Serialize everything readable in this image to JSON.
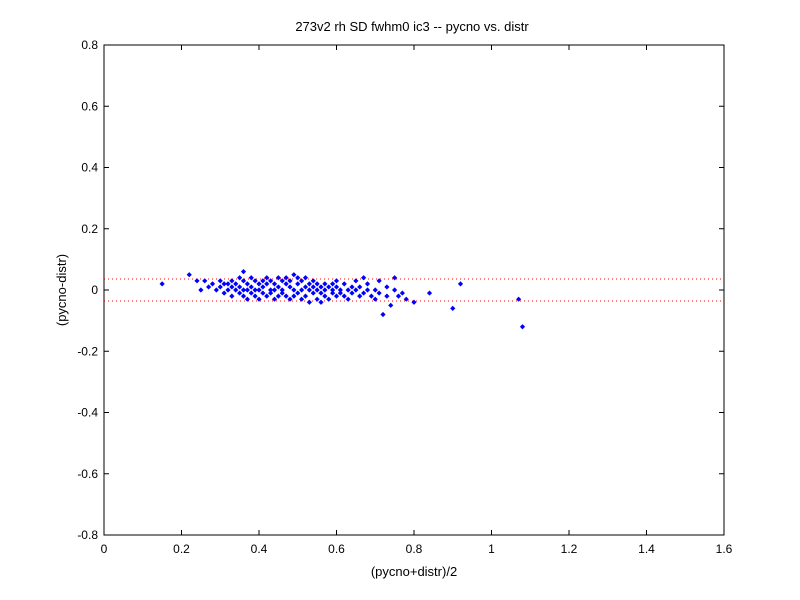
{
  "chart_data": {
    "type": "scatter",
    "title": "273v2 rh SD fwhm0 ic3 -- pycno vs. distr",
    "xlabel": "(pycno+distr)/2",
    "ylabel": "(pycno-distr)",
    "xlim": [
      0,
      1.6
    ],
    "ylim": [
      -0.8,
      0.8
    ],
    "xticks": [
      0,
      0.2,
      0.4,
      0.6,
      0.8,
      1,
      1.2,
      1.4,
      1.6
    ],
    "yticks": [
      -0.8,
      -0.6,
      -0.4,
      -0.2,
      0,
      0.2,
      0.4,
      0.6,
      0.8
    ],
    "xtick_labels": [
      "0",
      "0.2",
      "0.4",
      "0.6",
      "0.8",
      "1",
      "1.2",
      "1.4",
      "1.6"
    ],
    "ytick_labels": [
      "-0.8",
      "-0.6",
      "-0.4",
      "-0.2",
      "0",
      "0.2",
      "0.4",
      "0.6",
      "0.8"
    ],
    "grid": false,
    "legend": "none",
    "colors": {
      "points": "#0000ff",
      "reference_lines": "#ff0000",
      "axes": "#000000"
    },
    "reference_lines": [
      {
        "y": 0.036,
        "style": "dotted"
      },
      {
        "y": -0.036,
        "style": "dotted"
      }
    ],
    "series": [
      {
        "marker": "diamond",
        "points": [
          [
            0.15,
            0.02
          ],
          [
            0.22,
            0.05
          ],
          [
            0.24,
            0.03
          ],
          [
            0.25,
            0.0
          ],
          [
            0.26,
            0.03
          ],
          [
            0.27,
            0.01
          ],
          [
            0.28,
            0.02
          ],
          [
            0.29,
            0.0
          ],
          [
            0.3,
            0.01
          ],
          [
            0.3,
            0.03
          ],
          [
            0.31,
            0.02
          ],
          [
            0.31,
            -0.01
          ],
          [
            0.32,
            0.02
          ],
          [
            0.32,
            0.0
          ],
          [
            0.33,
            0.03
          ],
          [
            0.33,
            0.01
          ],
          [
            0.33,
            -0.02
          ],
          [
            0.34,
            0.02
          ],
          [
            0.34,
            0.0
          ],
          [
            0.35,
            0.04
          ],
          [
            0.35,
            0.01
          ],
          [
            0.35,
            -0.01
          ],
          [
            0.36,
            0.06
          ],
          [
            0.36,
            0.03
          ],
          [
            0.36,
            0.0
          ],
          [
            0.36,
            -0.02
          ],
          [
            0.37,
            0.02
          ],
          [
            0.37,
            0.0
          ],
          [
            0.37,
            -0.03
          ],
          [
            0.38,
            0.04
          ],
          [
            0.38,
            0.01
          ],
          [
            0.38,
            -0.01
          ],
          [
            0.39,
            0.03
          ],
          [
            0.39,
            0.0
          ],
          [
            0.39,
            -0.02
          ],
          [
            0.4,
            0.02
          ],
          [
            0.4,
            0.0
          ],
          [
            0.4,
            -0.03
          ],
          [
            0.41,
            0.03
          ],
          [
            0.41,
            0.01
          ],
          [
            0.41,
            -0.01
          ],
          [
            0.42,
            0.04
          ],
          [
            0.42,
            0.02
          ],
          [
            0.42,
            -0.02
          ],
          [
            0.43,
            0.03
          ],
          [
            0.43,
            0.0
          ],
          [
            0.43,
            -0.01
          ],
          [
            0.44,
            0.02
          ],
          [
            0.44,
            0.0
          ],
          [
            0.44,
            -0.03
          ],
          [
            0.45,
            0.04
          ],
          [
            0.45,
            0.01
          ],
          [
            0.45,
            -0.02
          ],
          [
            0.46,
            0.03
          ],
          [
            0.46,
            0.0
          ],
          [
            0.46,
            -0.01
          ],
          [
            0.47,
            0.02
          ],
          [
            0.47,
            -0.02
          ],
          [
            0.47,
            0.04
          ],
          [
            0.48,
            0.01
          ],
          [
            0.48,
            -0.03
          ],
          [
            0.48,
            0.03
          ],
          [
            0.49,
            0.0
          ],
          [
            0.49,
            0.05
          ],
          [
            0.49,
            -0.02
          ],
          [
            0.5,
            0.02
          ],
          [
            0.5,
            -0.01
          ],
          [
            0.5,
            0.04
          ],
          [
            0.51,
            0.0
          ],
          [
            0.51,
            0.03
          ],
          [
            0.51,
            -0.03
          ],
          [
            0.52,
            0.01
          ],
          [
            0.52,
            -0.02
          ],
          [
            0.52,
            0.04
          ],
          [
            0.53,
            0.0
          ],
          [
            0.53,
            0.02
          ],
          [
            0.53,
            -0.04
          ],
          [
            0.54,
            0.01
          ],
          [
            0.54,
            -0.01
          ],
          [
            0.54,
            0.03
          ],
          [
            0.55,
            0.0
          ],
          [
            0.55,
            -0.03
          ],
          [
            0.55,
            0.02
          ],
          [
            0.56,
            -0.01
          ],
          [
            0.56,
            0.01
          ],
          [
            0.56,
            -0.04
          ],
          [
            0.57,
            0.0
          ],
          [
            0.57,
            0.02
          ],
          [
            0.57,
            -0.02
          ],
          [
            0.58,
            0.01
          ],
          [
            0.58,
            -0.03
          ],
          [
            0.59,
            0.0
          ],
          [
            0.59,
            0.02
          ],
          [
            0.59,
            -0.01
          ],
          [
            0.6,
            0.01
          ],
          [
            0.6,
            -0.02
          ],
          [
            0.6,
            0.03
          ],
          [
            0.61,
            0.0
          ],
          [
            0.61,
            -0.01
          ],
          [
            0.62,
            0.02
          ],
          [
            0.62,
            -0.02
          ],
          [
            0.63,
            0.0
          ],
          [
            0.63,
            -0.03
          ],
          [
            0.64,
            0.01
          ],
          [
            0.64,
            -0.01
          ],
          [
            0.65,
            0.03
          ],
          [
            0.65,
            0.0
          ],
          [
            0.66,
            -0.02
          ],
          [
            0.66,
            0.01
          ],
          [
            0.67,
            0.04
          ],
          [
            0.67,
            -0.01
          ],
          [
            0.68,
            0.0
          ],
          [
            0.68,
            0.02
          ],
          [
            0.69,
            -0.02
          ],
          [
            0.7,
            0.0
          ],
          [
            0.7,
            -0.03
          ],
          [
            0.71,
            0.03
          ],
          [
            0.71,
            -0.01
          ],
          [
            0.72,
            -0.08
          ],
          [
            0.73,
            0.01
          ],
          [
            0.73,
            -0.02
          ],
          [
            0.74,
            -0.05
          ],
          [
            0.75,
            0.0
          ],
          [
            0.75,
            0.04
          ],
          [
            0.76,
            -0.02
          ],
          [
            0.77,
            -0.01
          ],
          [
            0.78,
            -0.03
          ],
          [
            0.8,
            -0.04
          ],
          [
            0.84,
            -0.01
          ],
          [
            0.9,
            -0.06
          ],
          [
            0.92,
            0.02
          ],
          [
            1.07,
            -0.03
          ],
          [
            1.08,
            -0.12
          ]
        ]
      }
    ]
  }
}
